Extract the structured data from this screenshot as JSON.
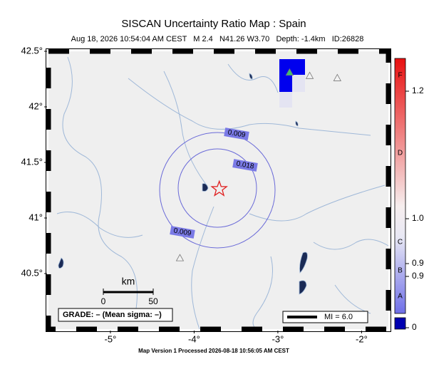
{
  "header": {
    "title": "SISCAN Uncertainty Ratio Map : Spain",
    "subtitle": "Aug 18, 2026 10:54:04 AM CEST   M 2.4   N41.26 W3.70   Depth: -1.4km   ID:26828"
  },
  "map": {
    "xlim": [
      -5.74,
      -1.68
    ],
    "ylim": [
      40.0,
      42.5
    ],
    "lat_ticks": [
      {
        "value": 42.5,
        "label": "42.5°"
      },
      {
        "value": 42,
        "label": "42°"
      },
      {
        "value": 41.5,
        "label": "41.5°"
      },
      {
        "value": 41,
        "label": "41°"
      },
      {
        "value": 40.5,
        "label": "40.5°"
      }
    ],
    "lon_ticks": [
      {
        "value": -5,
        "label": "-5°"
      },
      {
        "value": -4,
        "label": "-4°"
      },
      {
        "value": -3,
        "label": "-3°"
      },
      {
        "value": -2,
        "label": "-2°"
      }
    ],
    "epicenter": {
      "lon": -3.7,
      "lat": 41.26
    },
    "stations": [
      {
        "lon": -2.86,
        "lat": 42.31,
        "color": "#3fbf6f"
      },
      {
        "lon": -2.62,
        "lat": 42.28,
        "color": "#f2f2f2"
      },
      {
        "lon": -2.29,
        "lat": 42.26,
        "color": "#f2f2f2"
      },
      {
        "lon": -4.17,
        "lat": 40.64,
        "color": "#f2f2f2"
      }
    ],
    "contour_labels": [
      "0.009",
      "0.018",
      "0.009"
    ],
    "scale": {
      "unit": "km",
      "labels": [
        "0",
        "50"
      ]
    },
    "grade": "GRADE: – (Mean sigma: –)",
    "legend": "MI = 6.0"
  },
  "colorbar": {
    "letters": [
      "F",
      "D",
      "C",
      "B",
      "A"
    ],
    "labels": [
      "1.2",
      "1.0",
      "0.9",
      "0.9",
      "0"
    ]
  },
  "footer": "Map Version 1 Processed 2026-08-18 10:56:05 AM CEST"
}
